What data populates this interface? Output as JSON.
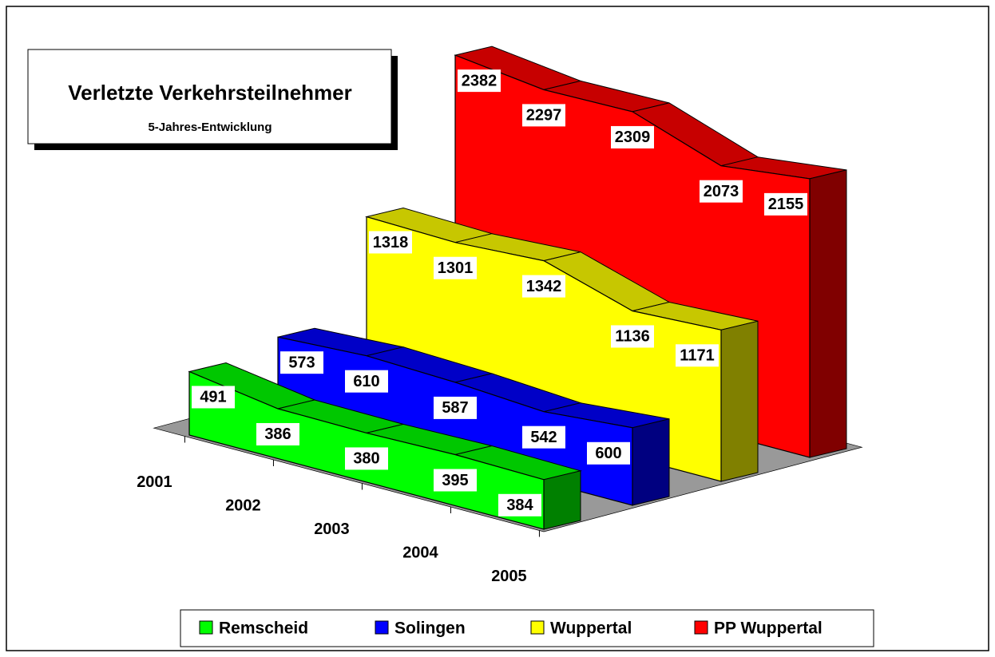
{
  "chart_data": {
    "type": "area3d",
    "title": "Verletzte Verkehrsteilnehmer",
    "subtitle": "5-Jahres-Entwicklung",
    "categories": [
      "2001",
      "2002",
      "2003",
      "2004",
      "2005"
    ],
    "series": [
      {
        "name": "Remscheid",
        "color": "#00ff00",
        "values": [
          491,
          386,
          380,
          395,
          384
        ]
      },
      {
        "name": "Solingen",
        "color": "#0000ff",
        "values": [
          573,
          610,
          587,
          542,
          600
        ]
      },
      {
        "name": "Wuppertal",
        "color": "#ffff00",
        "values": [
          1318,
          1301,
          1342,
          1136,
          1171
        ]
      },
      {
        "name": "PP Wuppertal",
        "color": "#ff0000",
        "values": [
          2382,
          2297,
          2309,
          2073,
          2155
        ]
      }
    ],
    "legend": "bottom"
  }
}
